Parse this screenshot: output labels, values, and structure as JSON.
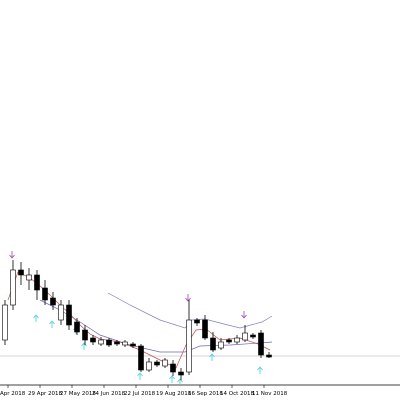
{
  "chart_data": {
    "type": "candlestick",
    "categories": [
      null,
      null,
      null,
      null,
      null,
      null,
      null,
      null,
      null,
      null,
      null,
      null,
      null,
      null,
      null,
      null,
      null,
      null,
      null,
      null,
      null,
      null,
      null,
      null,
      null,
      null,
      null,
      null,
      null,
      null,
      null,
      null,
      null,
      null
    ],
    "open": [
      60,
      95,
      130,
      120,
      125,
      112,
      102,
      80,
      95,
      78,
      70,
      62,
      56,
      60,
      58,
      55,
      56,
      54,
      30,
      38,
      34,
      36,
      28,
      28,
      80,
      80,
      62,
      52,
      60,
      58,
      60,
      65,
      67,
      45
    ],
    "high": [
      100,
      140,
      138,
      132,
      130,
      120,
      108,
      100,
      100,
      82,
      75,
      65,
      63,
      62,
      60,
      60,
      58,
      56,
      42,
      40,
      42,
      40,
      32,
      100,
      82,
      85,
      68,
      62,
      62,
      65,
      75,
      67,
      70,
      48
    ],
    "low": [
      55,
      90,
      115,
      110,
      100,
      95,
      90,
      75,
      70,
      65,
      55,
      55,
      54,
      53,
      54,
      53,
      52,
      28,
      28,
      33,
      32,
      24,
      20,
      25,
      74,
      60,
      48,
      50,
      56,
      56,
      58,
      61,
      42,
      42
    ],
    "close": [
      95,
      130,
      125,
      125,
      110,
      100,
      95,
      95,
      75,
      68,
      60,
      58,
      60,
      55,
      56,
      58,
      54,
      30,
      38,
      35,
      40,
      28,
      25,
      80,
      77,
      62,
      50,
      58,
      58,
      62,
      67,
      63,
      45,
      43
    ],
    "ylim": [
      0,
      400
    ],
    "up_color": "#ffffff",
    "down_color": "#000000",
    "x_labels": [
      "Apr 2018",
      "29 Apr 2018",
      "27 May 2018",
      "24 Jun 2018",
      "22 Jul 2018",
      "19 Aug 2018",
      "16 Sep 2018",
      "14 Oct 2018",
      "11 Nov 2018"
    ]
  }
}
